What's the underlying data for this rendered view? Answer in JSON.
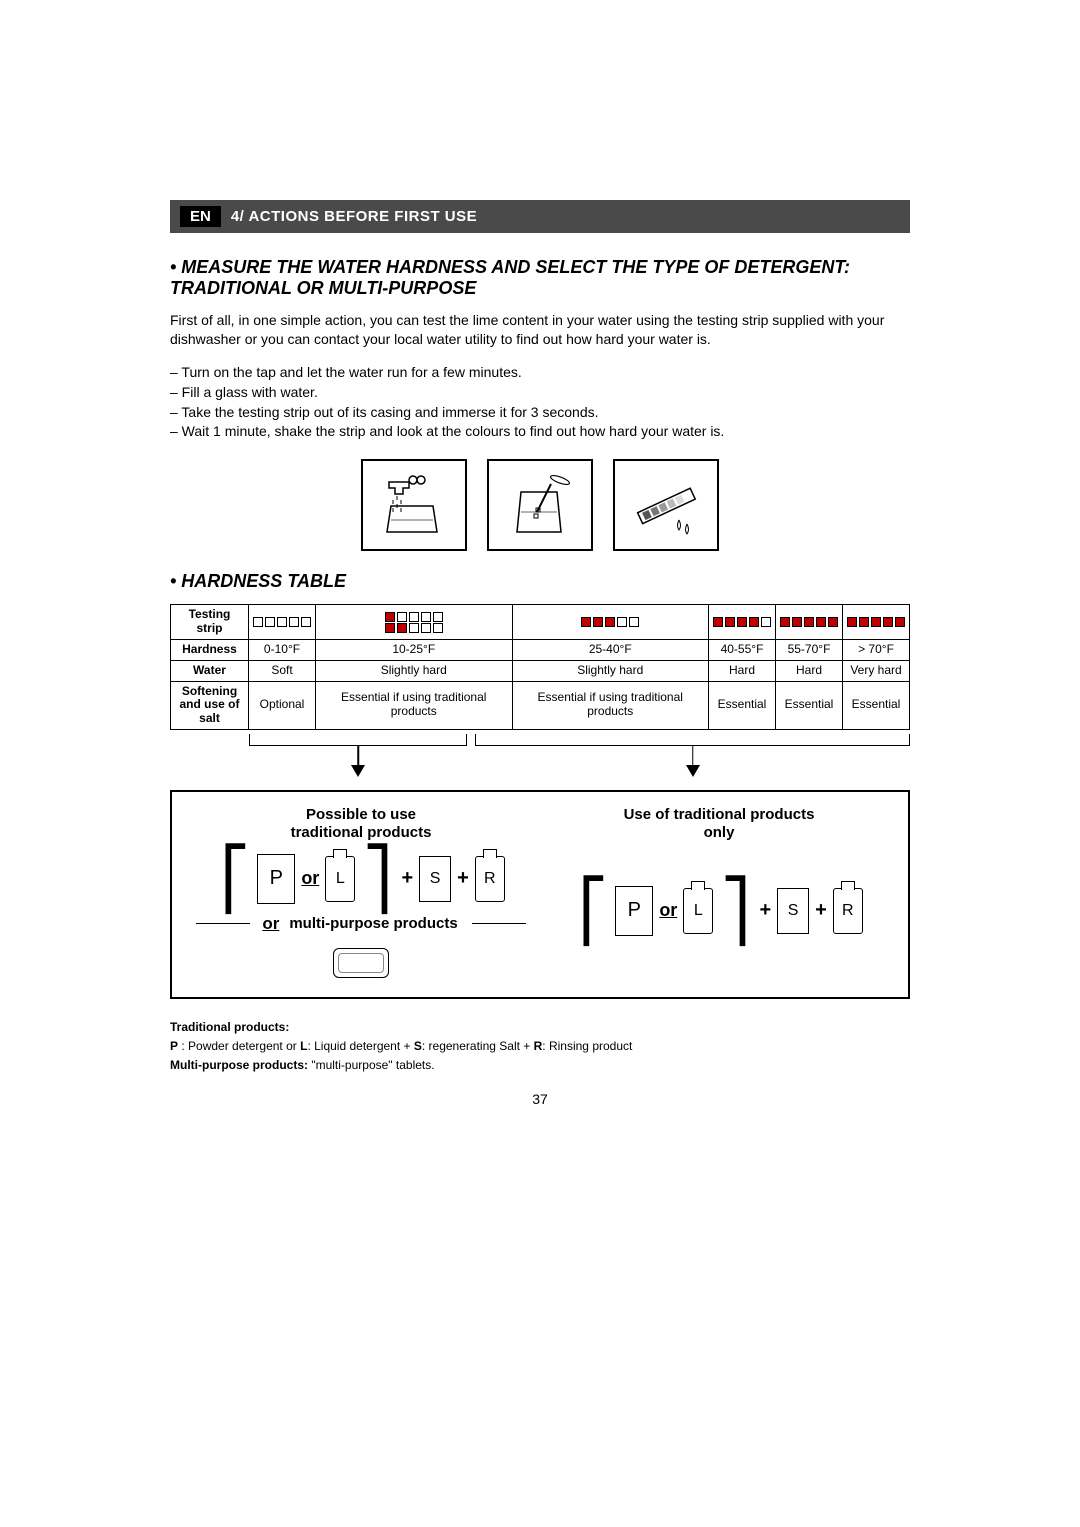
{
  "header": {
    "lang": "EN",
    "title": "4/ ACTIONS BEFORE FIRST USE"
  },
  "section1_title": "• MEASURE THE WATER HARDNESS AND SELECT THE TYPE OF DETERGENT: TRADITIONAL OR MULTI-PURPOSE",
  "intro": "First of all, in one simple action, you can test the lime content in your water using the testing strip supplied with your dishwasher or you can contact your local water utility to find out how hard your water is.",
  "steps": [
    "– Turn on the tap and let the water run for a few minutes.",
    "– Fill a glass with water.",
    "– Take the testing strip out of its casing and immerse it for 3 seconds.",
    "– Wait 1 minute, shake the strip and look at the colours to find out how hard your water is."
  ],
  "section2_title": "• HARDNESS TABLE",
  "table": {
    "row_headers": [
      "Testing strip",
      "Hardness",
      "Water",
      "Softening and use of salt"
    ],
    "strips": [
      [
        [
          0,
          0,
          0,
          0,
          0
        ]
      ],
      [
        [
          1,
          0,
          0,
          0,
          0
        ],
        [
          1,
          1,
          0,
          0,
          0
        ]
      ],
      [
        [
          1,
          1,
          1,
          0,
          0
        ]
      ],
      [
        [
          1,
          1,
          1,
          1,
          0
        ]
      ],
      [
        [
          1,
          1,
          1,
          1,
          1
        ]
      ],
      [
        [
          1,
          1,
          1,
          1,
          1
        ]
      ]
    ],
    "hardness": [
      "0-10°F",
      "10-25°F",
      "25-40°F",
      "40-55°F",
      "55-70°F",
      "> 70°F"
    ],
    "water": [
      "Soft",
      "Slightly hard",
      "Slightly hard",
      "Hard",
      "Hard",
      "Very hard"
    ],
    "softening": [
      "Optional",
      "Essential if using traditional products",
      "Essential if using traditional products",
      "Essential",
      "Essential",
      "Essential"
    ]
  },
  "panel": {
    "left_heading": "Possible to use\ntraditional products",
    "right_heading": "Use of traditional products\nonly",
    "multi_label": "multi-purpose products",
    "or_label": "or",
    "plus": "+",
    "labels": {
      "P": "P",
      "L": "L",
      "S": "S",
      "R": "R"
    }
  },
  "legend": {
    "l1": "Traditional products:",
    "l2a": "P",
    "l2b": " : Powder detergent or ",
    "l2c": "L",
    "l2d": ": Liquid detergent + ",
    "l2e": "S",
    "l2f": ": regenerating Salt + ",
    "l2g": "R",
    "l2h": ": Rinsing product",
    "l3a": "Multi-purpose products:",
    "l3b": " \"multi-purpose\" tablets."
  },
  "page_number": "37",
  "colors": {
    "header_bg": "#4a4a4a",
    "strip_fill": "#c00000"
  }
}
